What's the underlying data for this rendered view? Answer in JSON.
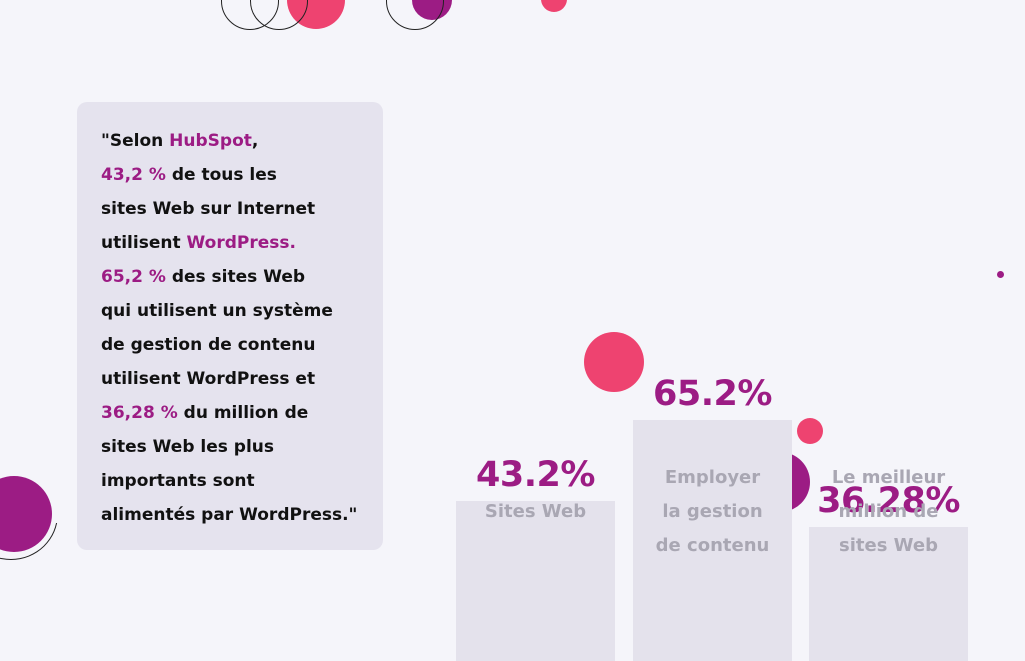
{
  "colors": {
    "background": "#f5f5fa",
    "card": "#e5e3ee",
    "bar": "#e4e2ec",
    "accent_purple": "#9c1c84",
    "accent_pink": "#ee4370",
    "label_gray": "#a9a7b3"
  },
  "quote": {
    "lines": [
      [
        {
          "text": "\"Selon "
        },
        {
          "text": "HubSpot",
          "highlight": true
        },
        {
          "text": ","
        }
      ],
      [
        {
          "text": "43,2 %",
          "highlight": true
        },
        {
          "text": " de tous les"
        }
      ],
      [
        {
          "text": "sites Web sur Internet"
        }
      ],
      [
        {
          "text": "utilisent "
        },
        {
          "text": "WordPress.",
          "highlight": true
        }
      ],
      [
        {
          "text": "65,2 %",
          "highlight": true
        },
        {
          "text": " des sites Web"
        }
      ],
      [
        {
          "text": "qui utilisent un système"
        }
      ],
      [
        {
          "text": "de gestion de contenu"
        }
      ],
      [
        {
          "text": "utilisent WordPress et"
        }
      ],
      [
        {
          "text": "36,28 %",
          "highlight": true
        },
        {
          "text": " du million de"
        }
      ],
      [
        {
          "text": "sites Web les plus"
        }
      ],
      [
        {
          "text": "importants sont"
        }
      ],
      [
        {
          "text": "alimentés par WordPress.\""
        }
      ]
    ]
  },
  "chart_data": {
    "type": "bar",
    "categories": [
      "Sites Web",
      "Employer la gestion de contenu",
      "Le meilleur million de sites Web"
    ],
    "category_lines": [
      [
        "Sites Web"
      ],
      [
        "Employer",
        "la gestion",
        "de contenu"
      ],
      [
        "Le meilleur",
        "million de",
        "sites Web"
      ]
    ],
    "values": [
      43.2,
      65.2,
      36.28
    ],
    "value_labels": [
      "43.2%",
      "65.2%",
      "36.28%"
    ],
    "ylim": [
      0,
      100
    ],
    "grid": false,
    "title": "",
    "xlabel": "",
    "ylabel": ""
  }
}
